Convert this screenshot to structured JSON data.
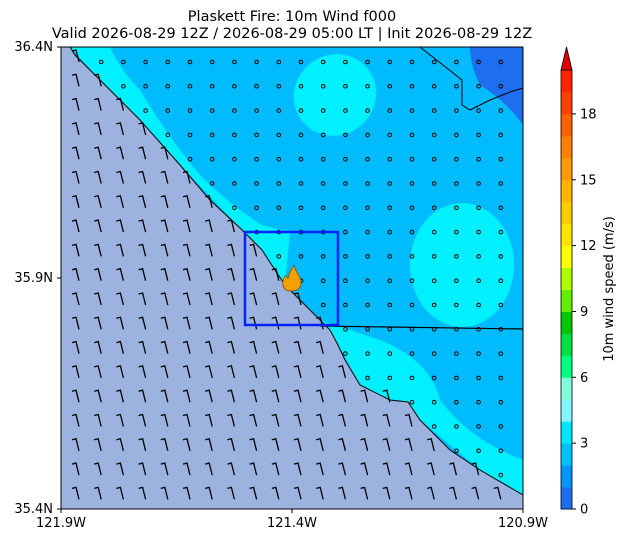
{
  "chart_data": {
    "type": "map",
    "title": "Plaskett Fire: 10m Wind f000",
    "subtitle": "Valid 2026-08-29 12Z / 2026-08-29 05:00 LT | Init 2026-08-29 12Z",
    "xlim": [
      -121.9,
      -120.9
    ],
    "ylim": [
      35.4,
      36.4
    ],
    "xticks": [
      {
        "value": -121.9,
        "label": "121.9W"
      },
      {
        "value": -121.4,
        "label": "121.4W"
      },
      {
        "value": -120.9,
        "label": "120.9W"
      }
    ],
    "yticks": [
      {
        "value": 35.4,
        "label": "35.4N"
      },
      {
        "value": 35.9,
        "label": "35.9N"
      },
      {
        "value": 36.4,
        "label": "36.4N"
      }
    ],
    "colorbar": {
      "label": "10m wind speed (m/s)",
      "lim": [
        0,
        20
      ],
      "ticks": [
        0,
        3,
        6,
        9,
        12,
        15,
        18
      ],
      "colors": [
        "#1e6ef0",
        "#0096ff",
        "#00c0ff",
        "#00e6ff",
        "#7ff8ff",
        "#80ffd8",
        "#00ff80",
        "#00e040",
        "#00c800",
        "#60f000",
        "#b0ff00",
        "#ffff00",
        "#ffe600",
        "#ffcc00",
        "#ffb400",
        "#ff9a00",
        "#ff8000",
        "#ff6000",
        "#ff4000",
        "#ff2400"
      ],
      "extend_color": "#e00000"
    }
  }
}
